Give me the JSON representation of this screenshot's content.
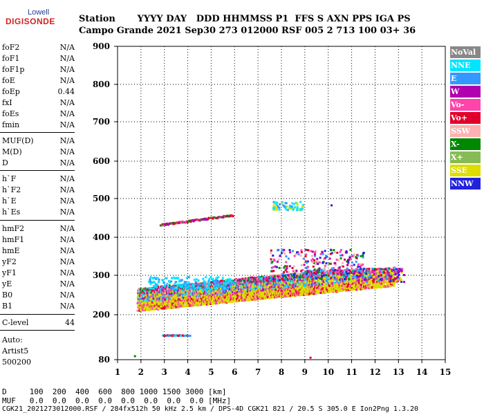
{
  "logo": {
    "top": "Lowell",
    "bottom": "DIGISONDE"
  },
  "header": {
    "row1": "Station       YYYY DAY   DDD HHMMSS P1  FFS S AXN PPS IGA PS",
    "row2": "Campo Grande 2021 Sep30 273 012000 RSF 005 2 713 100 03+ 36"
  },
  "params": [
    {
      "name": "foF2",
      "value": "N/A"
    },
    {
      "name": "foF1",
      "value": "N/A"
    },
    {
      "name": "foF1p",
      "value": "N/A"
    },
    {
      "name": "foE",
      "value": "N/A"
    },
    {
      "name": "foEp",
      "value": "0.44"
    },
    {
      "name": "fxI",
      "value": "N/A"
    },
    {
      "name": "foEs",
      "value": "N/A"
    },
    {
      "name": "fmin",
      "value": "N/A"
    },
    {
      "name": "MUF(D)",
      "value": "N/A"
    },
    {
      "name": "M(D)",
      "value": "N/A"
    },
    {
      "name": "D",
      "value": "N/A"
    },
    {
      "name": "h`F",
      "value": "N/A"
    },
    {
      "name": "h`F2",
      "value": "N/A"
    },
    {
      "name": "h`E",
      "value": "N/A"
    },
    {
      "name": "h`Es",
      "value": "N/A"
    },
    {
      "name": "hmF2",
      "value": "N/A"
    },
    {
      "name": "hmF1",
      "value": "N/A"
    },
    {
      "name": "hmE",
      "value": "N/A"
    },
    {
      "name": "yF2",
      "value": "N/A"
    },
    {
      "name": "yF1",
      "value": "N/A"
    },
    {
      "name": "yE",
      "value": "N/A"
    },
    {
      "name": "B0",
      "value": "N/A"
    },
    {
      "name": "B1",
      "value": "N/A"
    },
    {
      "name": "C-level",
      "value": "44"
    }
  ],
  "auto": {
    "line1": "Auto:",
    "line2": "Artist5",
    "line3": "500200"
  },
  "chart_data": {
    "type": "scatter",
    "title": "",
    "xlabel": "",
    "ylabel": "",
    "xlim": [
      1,
      15
    ],
    "ylim": [
      80,
      900
    ],
    "x_ticks": [
      "1",
      "2",
      "3",
      "4",
      "5",
      "6",
      "7",
      "8",
      "9",
      "10",
      "11",
      "12",
      "13",
      "14",
      "15"
    ],
    "y_ticks": [
      "900",
      "800",
      "700",
      "600",
      "500",
      "400",
      "300",
      "200",
      "80"
    ],
    "y_tick_values": [
      900,
      800,
      700,
      600,
      500,
      400,
      300,
      200,
      80
    ],
    "grid": true
  },
  "legend": [
    {
      "label": "NoVal",
      "color": "#888888"
    },
    {
      "label": "NNE",
      "color": "#00e5ff"
    },
    {
      "label": "E",
      "color": "#3399ff"
    },
    {
      "label": "W",
      "color": "#b000b0"
    },
    {
      "label": "Vo-",
      "color": "#ff44aa"
    },
    {
      "label": "Vo+",
      "color": "#e0002a"
    },
    {
      "label": "SSW",
      "color": "#ffb0b0"
    },
    {
      "label": "X-",
      "color": "#008800"
    },
    {
      "label": "X+",
      "color": "#88bb55"
    },
    {
      "label": "SSE",
      "color": "#dddd00"
    },
    {
      "label": "NNW",
      "color": "#2222dd"
    }
  ],
  "footer": {
    "line1": "D     100  200  400  600  800 1000 1500 3000 [km]",
    "line2": "MUF   0.0  0.0  0.0  0.0  0.0  0.0  0.0  0.0 [MHz]",
    "line3": "CGK21_2021273012000.RSF / 284fx512h 50 kHz 2.5 km / DPS-4D CGK21 821 / 20.5 S 305.0 E Ion2Png 1.3.20"
  }
}
